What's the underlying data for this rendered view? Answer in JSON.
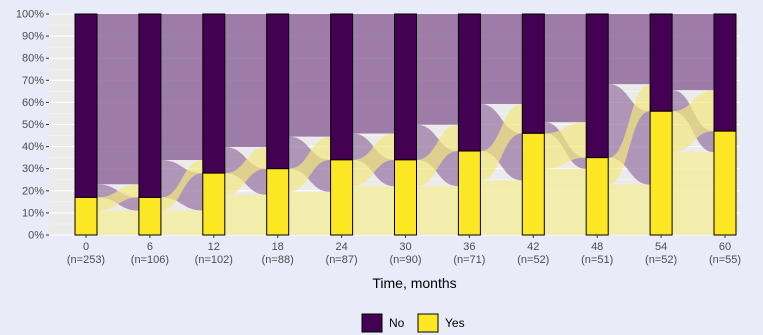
{
  "chart_data": {
    "type": "bar",
    "subtype": "stacked-percent-alluvial",
    "title": "",
    "xlabel": "Time, months",
    "ylabel": "",
    "ylim": [
      0,
      100
    ],
    "y_ticks": [
      "0%",
      "10%",
      "20%",
      "30%",
      "40%",
      "50%",
      "60%",
      "70%",
      "80%",
      "90%",
      "100%"
    ],
    "categories": [
      "0",
      "6",
      "12",
      "18",
      "24",
      "30",
      "36",
      "42",
      "48",
      "54",
      "60"
    ],
    "category_n": [
      "(n=253)",
      "(n=106)",
      "(n=102)",
      "(n=88)",
      "(n=87)",
      "(n=90)",
      "(n=71)",
      "(n=52)",
      "(n=51)",
      "(n=52)",
      "(n=55)"
    ],
    "series": [
      {
        "name": "No",
        "color": "#440154",
        "values": [
          83,
          83,
          72,
          70,
          66,
          66,
          62,
          54,
          65,
          44,
          53
        ]
      },
      {
        "name": "Yes",
        "color": "#fde725",
        "values": [
          17,
          17,
          28,
          30,
          34,
          34,
          38,
          46,
          35,
          56,
          47
        ]
      }
    ],
    "stack_order": "Yes at bottom, No on top",
    "grid": true,
    "legend_position": "bottom",
    "flows": {
      "description": "alluvial flows between consecutive time points",
      "stay_no_color": "#8f6a9c",
      "stay_yes_color": "#f5eda2",
      "switch_color_no_to_yes": "#9b79a8",
      "switch_color_yes_to_no": "#f2e77d"
    }
  }
}
